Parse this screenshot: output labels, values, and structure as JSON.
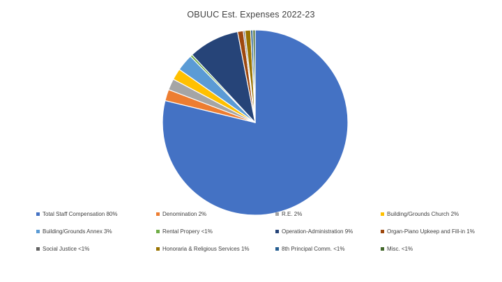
{
  "page": {
    "background_color": "#FFFFFF"
  },
  "chart_data": {
    "type": "pie",
    "title": "OBUUC Est. Expenses 2022-23",
    "title_color": "#404040",
    "legend_position": "bottom",
    "legend_columns": 4,
    "legend_rows": 3,
    "legend_text_color": "#404040",
    "start_angle_deg": 0,
    "direction": "clockwise",
    "slice_border_color": "#FFFFFF",
    "slices": [
      {
        "name": "Total Staff Compensation",
        "display_pct": "80%",
        "label": "Total Staff Compensation 80%",
        "weight": 80,
        "color": "#4472C4"
      },
      {
        "name": "Denomination",
        "display_pct": "2%",
        "label": "Denomination 2%",
        "weight": 2,
        "color": "#ED7D31"
      },
      {
        "name": "R.E.",
        "display_pct": "2%",
        "label": "R.E. 2%",
        "weight": 2,
        "color": "#A5A5A5"
      },
      {
        "name": "Building/Grounds Church",
        "display_pct": "2%",
        "label": "Building/Grounds Church 2%",
        "weight": 2,
        "color": "#FFC000"
      },
      {
        "name": "Building/Grounds Annex",
        "display_pct": "3%",
        "label": "Building/Grounds Annex 3%",
        "weight": 3,
        "color": "#5B9BD5"
      },
      {
        "name": "Rental Propery",
        "display_pct": "<1%",
        "label": "Rental Propery <1%",
        "weight": 0.4,
        "color": "#70AD47"
      },
      {
        "name": "Operation-Administration",
        "display_pct": "9%",
        "label": "Operation-Administration 9%",
        "weight": 9,
        "color": "#264478"
      },
      {
        "name": "Organ-Piano Upkeep and Fill-in",
        "display_pct": "1%",
        "label": "Organ-Piano Upkeep and Fill-in 1%",
        "weight": 1,
        "color": "#9E480E"
      },
      {
        "name": "Social Justice",
        "display_pct": "<1%",
        "label": "Social Justice <1%",
        "weight": 0.3,
        "color": "#636363"
      },
      {
        "name": "Honoraria & Religious Services",
        "display_pct": "1%",
        "label": "Honoraria & Religious Services 1%",
        "weight": 1,
        "color": "#997300"
      },
      {
        "name": "8th Principal Comm.",
        "display_pct": "<1%",
        "label": "8th Principal Comm. <1%",
        "weight": 0.4,
        "color": "#255E91"
      },
      {
        "name": "Misc.",
        "display_pct": "<1%",
        "label": "Misc. <1%",
        "weight": 0.4,
        "color": "#43682B"
      }
    ]
  }
}
